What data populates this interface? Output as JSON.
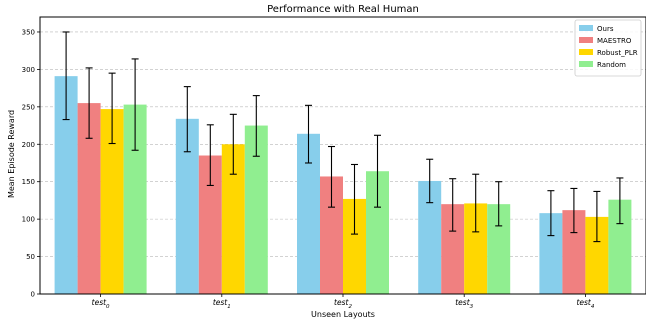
{
  "chart_data": {
    "type": "bar",
    "title": "Performance with Real Human",
    "xlabel": "Unseen Layouts",
    "ylabel": "Mean Episode Reward",
    "categories": [
      {
        "base": "test",
        "sub": "0"
      },
      {
        "base": "test",
        "sub": "1"
      },
      {
        "base": "test",
        "sub": "2"
      },
      {
        "base": "test",
        "sub": "3"
      },
      {
        "base": "test",
        "sub": "4"
      }
    ],
    "ylim": [
      0,
      370
    ],
    "yticks": [
      0,
      50,
      100,
      150,
      200,
      250,
      300,
      350
    ],
    "grid": "horizontal dashed",
    "legend_position": "top-right",
    "series": [
      {
        "name": "Ours",
        "color": "#87ceeb",
        "values": [
          291,
          234,
          214,
          151,
          108
        ],
        "err_low": [
          233,
          190,
          175,
          122,
          78
        ],
        "err_high": [
          350,
          277,
          252,
          180,
          138
        ]
      },
      {
        "name": "MAESTRO",
        "color": "#f08080",
        "values": [
          255,
          185,
          157,
          120,
          112
        ],
        "err_low": [
          208,
          145,
          116,
          84,
          82
        ],
        "err_high": [
          302,
          226,
          197,
          154,
          141
        ]
      },
      {
        "name": "Robust_PLR",
        "color": "#ffd700",
        "values": [
          247,
          200,
          127,
          121,
          103
        ],
        "err_low": [
          201,
          160,
          80,
          83,
          70
        ],
        "err_high": [
          295,
          240,
          173,
          160,
          137
        ]
      },
      {
        "name": "Random",
        "color": "#90ee90",
        "values": [
          253,
          225,
          164,
          120,
          126
        ],
        "err_low": [
          192,
          184,
          116,
          91,
          94
        ],
        "err_high": [
          314,
          265,
          212,
          150,
          155
        ]
      }
    ]
  }
}
